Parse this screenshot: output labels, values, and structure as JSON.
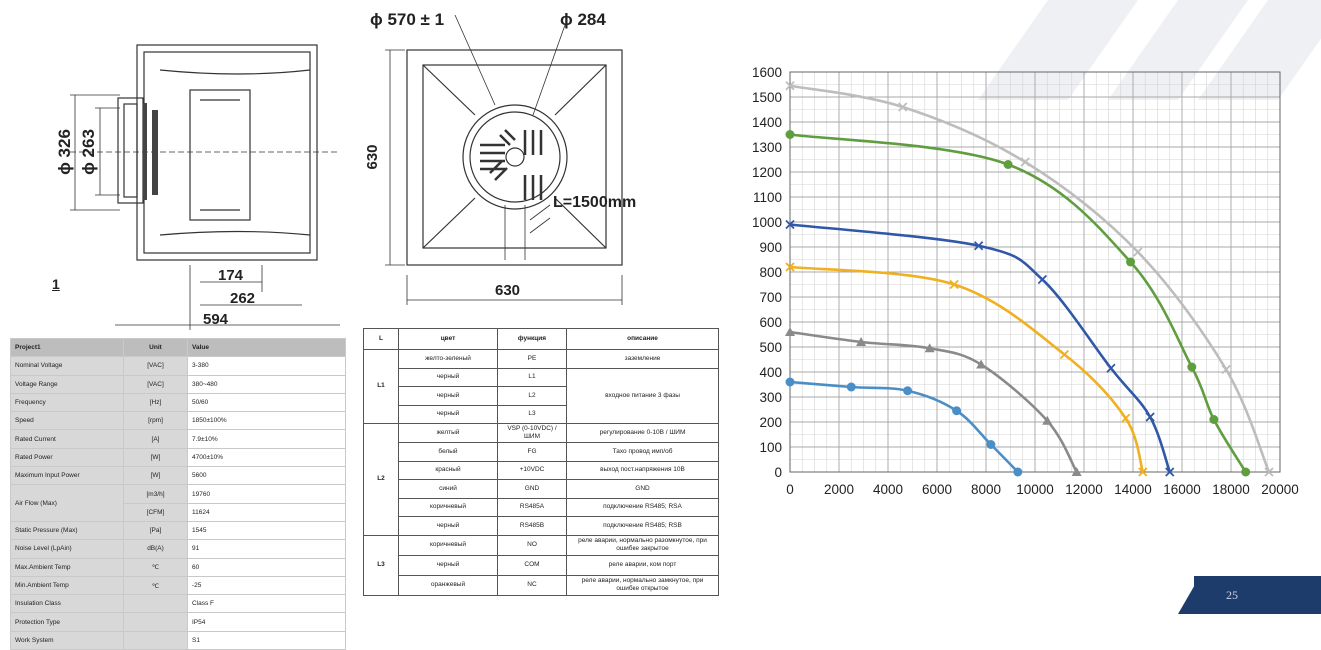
{
  "drawing": {
    "label_1": "1",
    "dims_left": {
      "d326": "ϕ 326",
      "d263": "ϕ 263",
      "d174": "174",
      "d262": "262",
      "d594": "594"
    },
    "dims_right": {
      "d570": "ϕ 570 ± 1",
      "d284": "ϕ 284",
      "d630v": "630",
      "d630h": "630",
      "cable": "L=1500mm"
    }
  },
  "spec_table": {
    "header": [
      "Project1",
      "Unit",
      "Value"
    ],
    "rows": [
      [
        "Nominal Voltage",
        "[VAC]",
        "3-380"
      ],
      [
        "Voltage Range",
        "[VAC]",
        "380~480"
      ],
      [
        "Frequency",
        "[Hz]",
        "50/60"
      ],
      [
        "Speed",
        "[rpm]",
        "1850±100%"
      ],
      [
        "Rated Current",
        "[A]",
        "7.9±10%"
      ],
      [
        "Rated Power",
        "[W]",
        "4700±10%"
      ],
      [
        "Maximum Input Power",
        "[W]",
        "5600"
      ],
      [
        "Air Flow (Max)",
        "[m3/h]",
        "19760"
      ],
      [
        "",
        "[CFM]",
        "11624"
      ],
      [
        "Static Pressure (Max)",
        "[Pa]",
        "1545"
      ],
      [
        "Noise Level (LpAin)",
        "dB(A)",
        "91"
      ],
      [
        "Max.Ambient Temp",
        "℃",
        "60"
      ],
      [
        "Min.Ambient Temp",
        "℃",
        "-25"
      ],
      [
        "Insulation Class",
        "",
        "Class F"
      ],
      [
        "Protection Type",
        "",
        "IP54"
      ],
      [
        "Work System",
        "",
        "S1"
      ]
    ]
  },
  "wiring_table": {
    "header": [
      "L",
      "цвет",
      "функция",
      "описание"
    ],
    "groups": [
      {
        "label": "L1",
        "rows": [
          {
            "color": "желто-зеленый",
            "func": "PE",
            "desc": "заземление"
          },
          {
            "color": "черный",
            "func": "L1",
            "desc": "входное питание 3 фазы"
          },
          {
            "color": "черный",
            "func": "L2",
            "desc": ""
          },
          {
            "color": "черный",
            "func": "L3",
            "desc": ""
          }
        ]
      },
      {
        "label": "L2",
        "rows": [
          {
            "color": "желтый",
            "func": "VSP (0-10VDC) / ШИМ",
            "desc": "регулирование 0-10В / ШИМ"
          },
          {
            "color": "белый",
            "func": "FG",
            "desc": "Тахо провод имп/об"
          },
          {
            "color": "красный",
            "func": "+10VDC",
            "desc": "выход пост.напряжения 10В"
          },
          {
            "color": "синий",
            "func": "GND",
            "desc": "GND"
          },
          {
            "color": "коричневый",
            "func": "RS485A",
            "desc": "подключение RS485; RSA"
          },
          {
            "color": "черный",
            "func": "RS485B",
            "desc": "подключение RS485; RSB"
          }
        ]
      },
      {
        "label": "L3",
        "rows": [
          {
            "color": "коричневый",
            "func": "NO",
            "desc": "реле аварии, нормально разомкнутое, при ошибке закрытое"
          },
          {
            "color": "черный",
            "func": "COM",
            "desc": "реле аварии, ком порт"
          },
          {
            "color": "оранжевый",
            "func": "NC",
            "desc": "реле аварии, нормально замкнутое, при ошибке открытое"
          }
        ]
      }
    ]
  },
  "chart_data": {
    "type": "line",
    "title": "",
    "xlabel": "",
    "ylabel": "",
    "xlim": [
      0,
      20000
    ],
    "ylim": [
      0,
      1600
    ],
    "xticks": [
      "0",
      "2000",
      "4000",
      "6000",
      "8000",
      "10000",
      "12000",
      "14000",
      "16000",
      "18000",
      "20000"
    ],
    "yticks": [
      "0",
      "100",
      "200",
      "300",
      "400",
      "500",
      "600",
      "700",
      "800",
      "900",
      "1000",
      "1100",
      "1200",
      "1300",
      "1400",
      "1500",
      "1600"
    ],
    "grid": true,
    "series": [
      {
        "color": "#bdbdbd",
        "marker": "x",
        "points": [
          [
            0,
            1545
          ],
          [
            4600,
            1460
          ],
          [
            9600,
            1240
          ],
          [
            14200,
            880
          ],
          [
            17800,
            410
          ],
          [
            19550,
            0
          ]
        ]
      },
      {
        "color": "#5f9e3f",
        "marker": "circle",
        "points": [
          [
            0,
            1350
          ],
          [
            8900,
            1230
          ],
          [
            13900,
            840
          ],
          [
            16400,
            420
          ],
          [
            17300,
            210
          ],
          [
            18600,
            0
          ]
        ]
      },
      {
        "color": "#2f58a8",
        "marker": "x",
        "points": [
          [
            0,
            990
          ],
          [
            7700,
            905
          ],
          [
            10300,
            770
          ],
          [
            13100,
            415
          ],
          [
            14700,
            220
          ],
          [
            15500,
            0
          ]
        ]
      },
      {
        "color": "#f0b020",
        "marker": "x",
        "points": [
          [
            0,
            820
          ],
          [
            6700,
            750
          ],
          [
            11200,
            470
          ],
          [
            13700,
            215
          ],
          [
            14400,
            0
          ]
        ]
      },
      {
        "color": "#8a8a8a",
        "marker": "triangle",
        "points": [
          [
            0,
            560
          ],
          [
            2900,
            520
          ],
          [
            5700,
            495
          ],
          [
            7800,
            430
          ],
          [
            10500,
            205
          ],
          [
            11700,
            0
          ]
        ]
      },
      {
        "color": "#4a8ec8",
        "marker": "circle",
        "points": [
          [
            0,
            360
          ],
          [
            2500,
            340
          ],
          [
            4800,
            325
          ],
          [
            6800,
            245
          ],
          [
            8200,
            110
          ],
          [
            9300,
            0
          ]
        ]
      }
    ]
  },
  "page_number": "25"
}
